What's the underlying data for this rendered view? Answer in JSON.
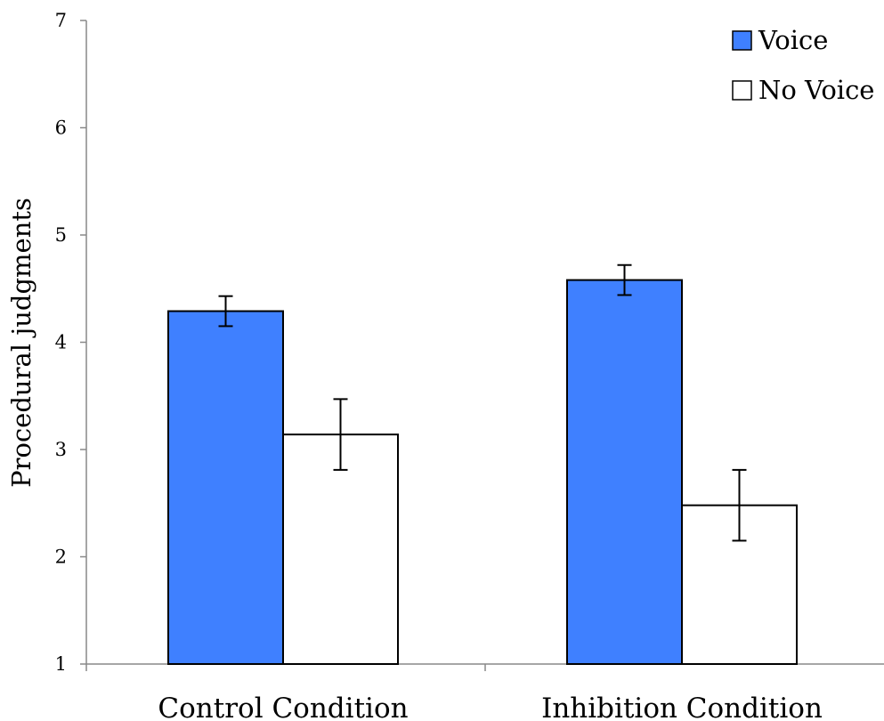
{
  "chart_data": {
    "type": "bar",
    "categories": [
      "Control Condition",
      "Inhibition Condition"
    ],
    "series": [
      {
        "name": "Voice",
        "values": [
          4.29,
          4.58
        ],
        "errors": [
          0.14,
          0.14
        ],
        "color": "#3f80ff"
      },
      {
        "name": "No Voice",
        "values": [
          3.14,
          2.48
        ],
        "errors": [
          0.33,
          0.33
        ],
        "color": "#ffffff"
      }
    ],
    "xlabel": "",
    "ylabel": "Procedural judgments",
    "ylim": [
      1,
      7
    ],
    "yticks": [
      1,
      2,
      3,
      4,
      5,
      6,
      7
    ],
    "grid": false,
    "legend_position": "top-right"
  }
}
